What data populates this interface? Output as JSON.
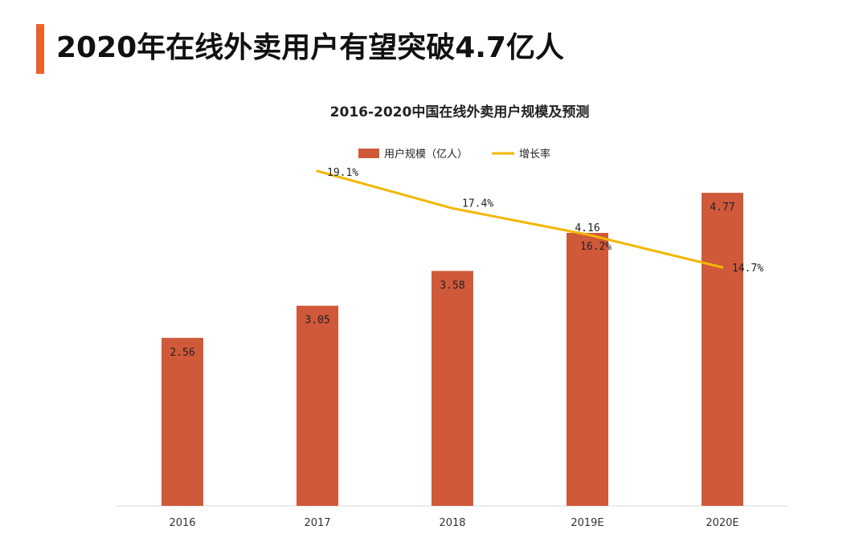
{
  "page": {
    "title": "2020年在线外卖用户有望突破4.7亿人"
  },
  "colors": {
    "accent": "#e8622c",
    "bar": "#d0593a",
    "line": "#f2b705"
  },
  "legend": {
    "bar_label": "用户规模（亿人）",
    "line_label": "增长率"
  },
  "chart_data": {
    "type": "bar",
    "title": "2016-2020中国在线外卖用户规模及预测",
    "categories": [
      "2016",
      "2017",
      "2018",
      "2019E",
      "2020E"
    ],
    "series": [
      {
        "name": "用户规模（亿人）",
        "type": "bar",
        "values": [
          2.56,
          3.05,
          3.58,
          4.16,
          4.77
        ],
        "labels": [
          "2.56",
          "3.05",
          "3.58",
          "4.16",
          "4.77"
        ]
      },
      {
        "name": "增长率",
        "type": "line",
        "values": [
          null,
          19.1,
          17.4,
          16.2,
          14.7
        ],
        "labels": [
          "",
          "19.1%",
          "17.4%",
          "16.2%",
          "14.7%"
        ]
      }
    ],
    "ylim": [
      0,
      5.2
    ],
    "y2lim": [
      0,
      25
    ],
    "grid": false,
    "legend_position": "top"
  }
}
